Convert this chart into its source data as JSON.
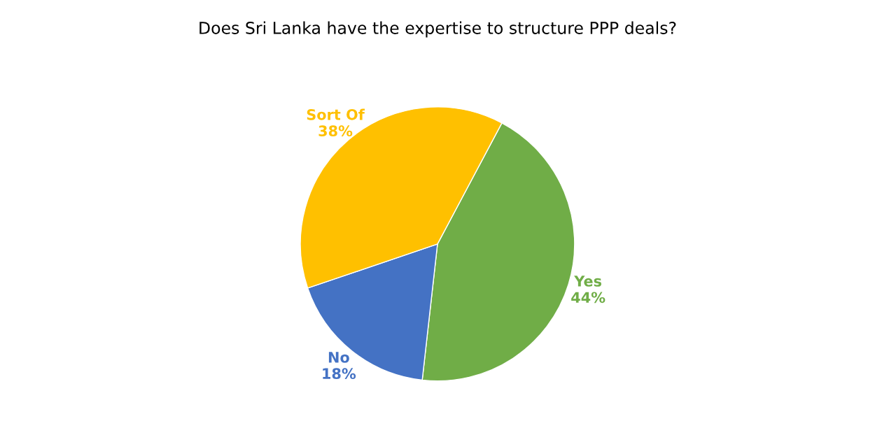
{
  "chart_data": {
    "type": "pie",
    "title": "Does Sri Lanka have the expertise to structure PPP deals?",
    "categories": [
      "Yes",
      "No",
      "Sort Of"
    ],
    "values": [
      44,
      18,
      38
    ],
    "value_labels": [
      "44%",
      "18%",
      "38%"
    ],
    "colors": [
      "#70ad47",
      "#4472c4",
      "#ffc000"
    ],
    "legend": false
  }
}
